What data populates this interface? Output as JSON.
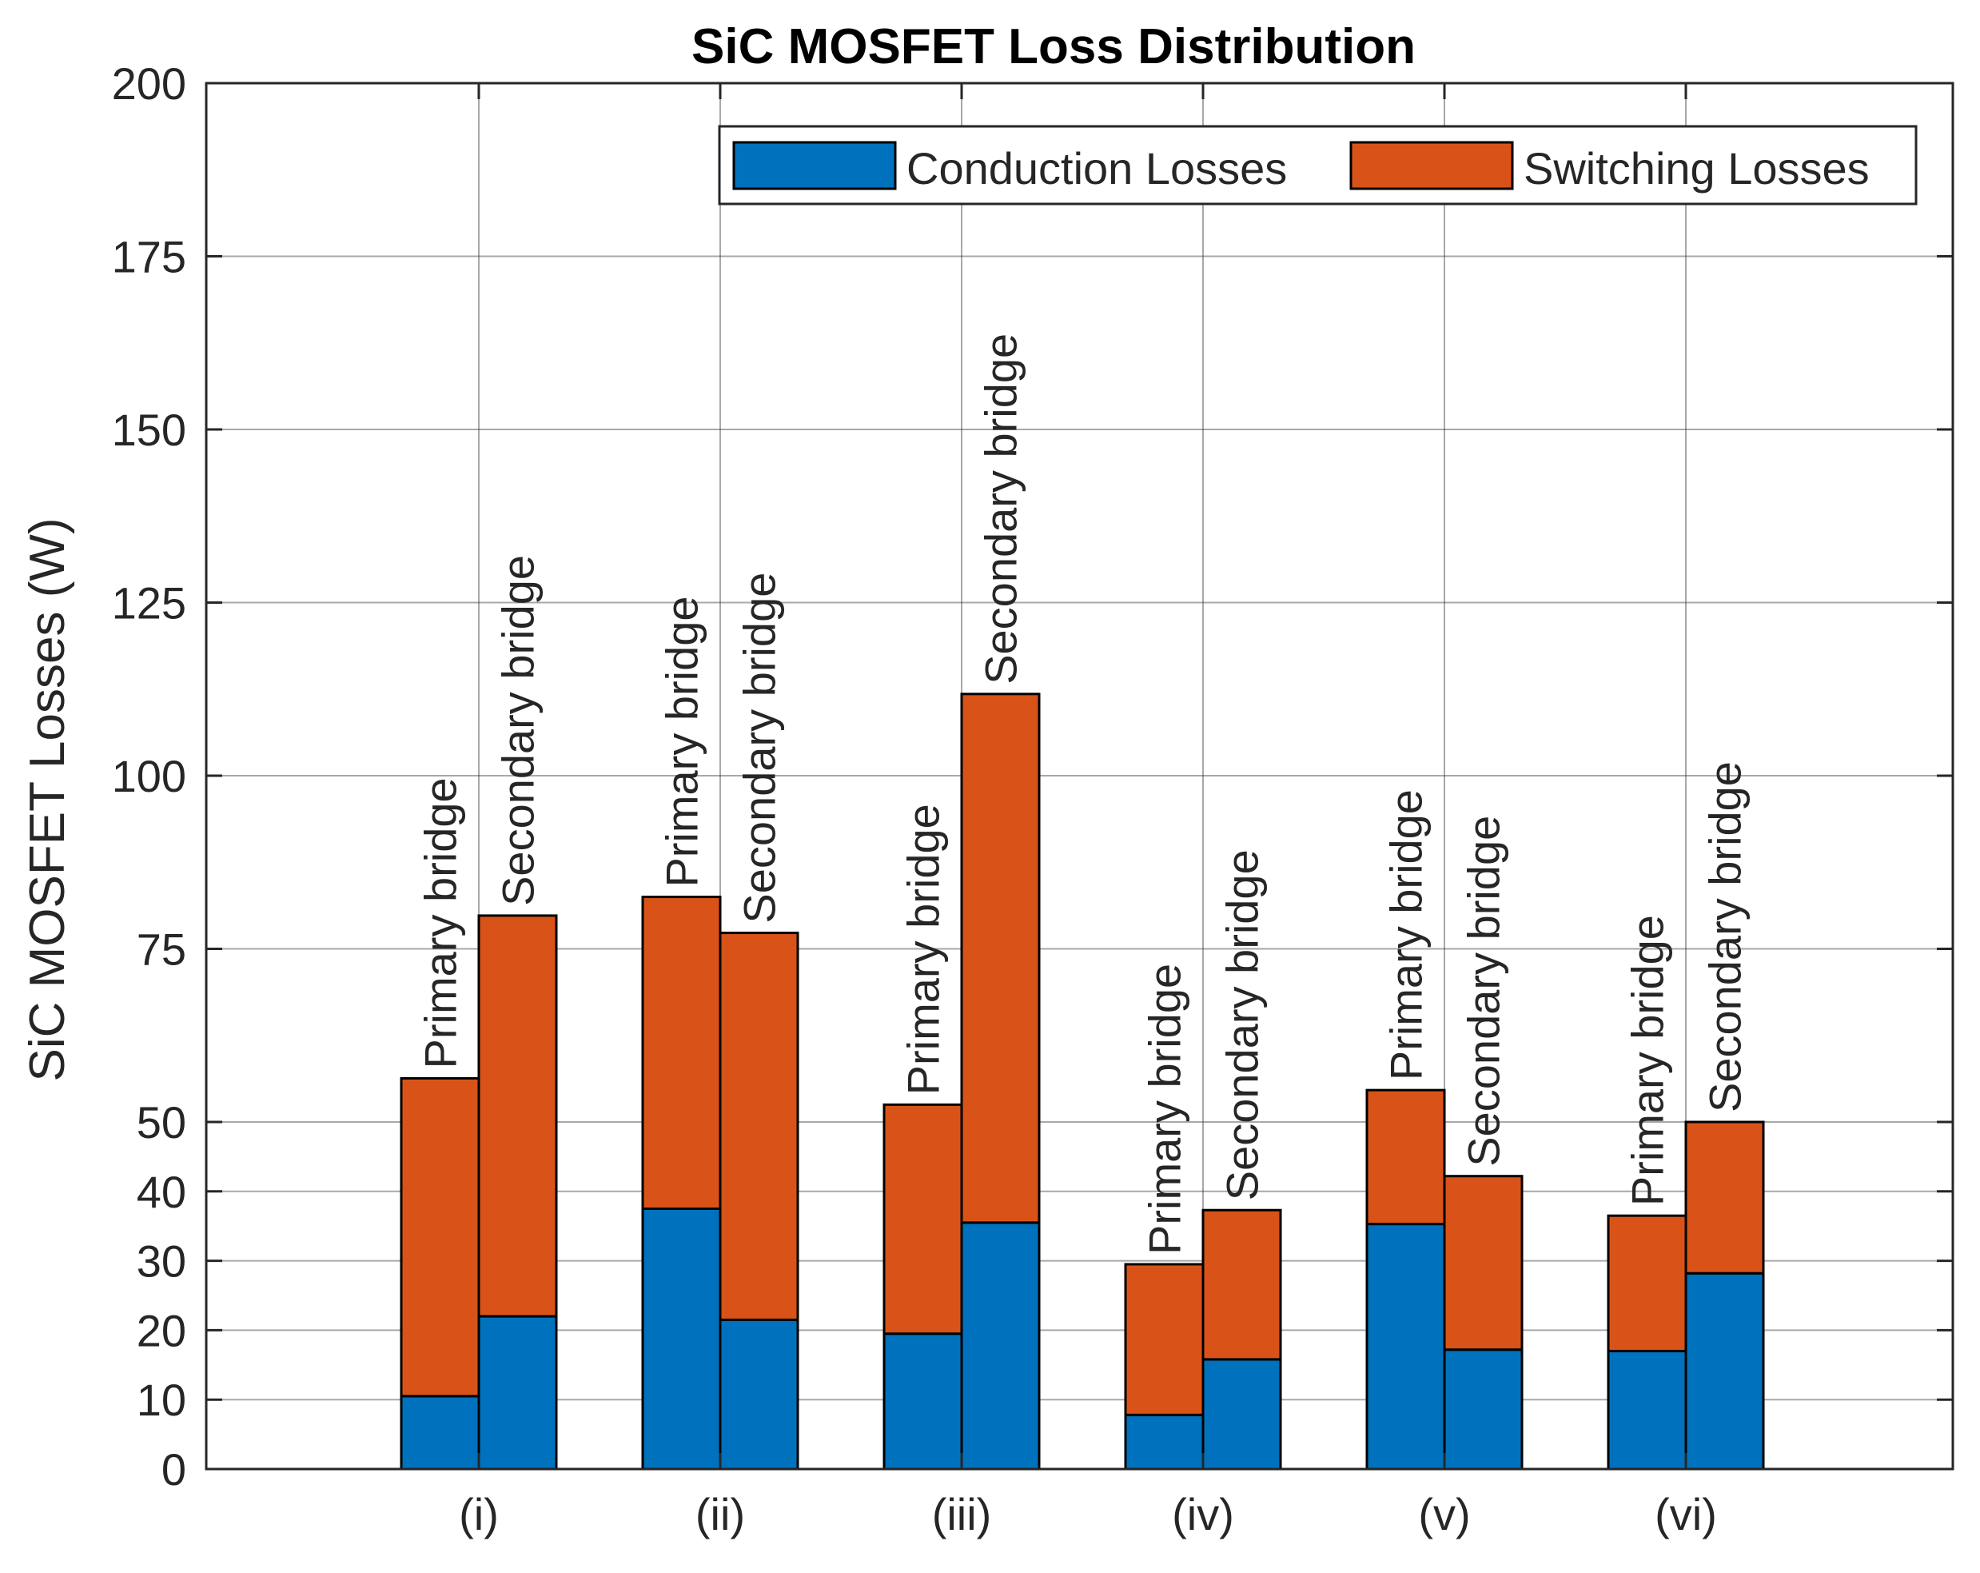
{
  "chart_data": {
    "type": "bar",
    "stacked": true,
    "title": "SiC MOSFET Loss Distribution",
    "xlabel": "",
    "ylabel": "SiC MOSFET Losses (W)",
    "ylim": [
      0,
      200
    ],
    "y_ticks": [
      "0",
      "10",
      "20",
      "30",
      "40",
      "50",
      "75",
      "100",
      "125",
      "150",
      "175",
      "200"
    ],
    "y_tick_values": [
      0,
      10,
      20,
      30,
      40,
      50,
      75,
      100,
      125,
      150,
      175,
      200
    ],
    "categories": [
      "(i)",
      "(ii)",
      "(iii)",
      "(iv)",
      "(v)",
      "(vi)"
    ],
    "bar_labels": [
      "Primary bridge",
      "Secondary bridge"
    ],
    "grid": true,
    "legend_position": "top-right",
    "series": [
      {
        "name": "Conduction Losses",
        "color": "#0072BD",
        "values": {
          "primary": [
            10.5,
            37.5,
            19.5,
            7.8,
            35.3,
            17.0
          ],
          "secondary": [
            22.0,
            21.5,
            35.5,
            15.8,
            17.2,
            28.2
          ]
        }
      },
      {
        "name": "Switching Losses",
        "color": "#D95319",
        "values": {
          "primary": [
            45.8,
            45.0,
            33.0,
            21.7,
            19.3,
            19.5
          ],
          "secondary": [
            57.8,
            55.8,
            76.3,
            21.5,
            25.0,
            21.8
          ]
        }
      }
    ]
  }
}
